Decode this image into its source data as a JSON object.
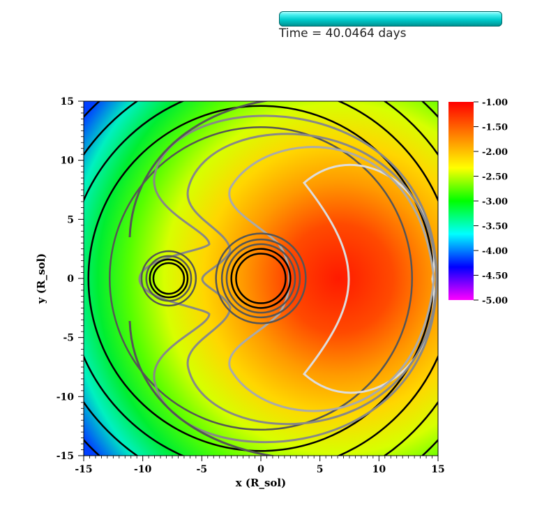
{
  "header": {
    "time_label": "Time = 40.0464 days",
    "progress": 1.0
  },
  "chart_data": {
    "type": "heatmap",
    "title": "",
    "xlabel": "x (R_sol)",
    "ylabel": "y (R_sol)",
    "xlim": [
      -15,
      15
    ],
    "ylim": [
      -15,
      15
    ],
    "x_ticks": [
      -15,
      -10,
      -5,
      0,
      5,
      10,
      15
    ],
    "y_ticks": [
      -15,
      -10,
      -5,
      0,
      5,
      10,
      15
    ],
    "x_tick_labels": [
      "-15",
      "-10",
      "-5",
      "0",
      "5",
      "10",
      "15"
    ],
    "y_tick_labels": [
      "-15",
      "-10",
      "-5",
      "0",
      "5",
      "10",
      "15"
    ],
    "colorbar": {
      "range": [
        -5.0,
        -1.0
      ],
      "tick_values": [
        -1.0,
        -1.5,
        -2.0,
        -2.5,
        -3.0,
        -3.5,
        -4.0,
        -4.5,
        -5.0
      ],
      "tick_labels": [
        "-1.00",
        "-1.50",
        "-2.00",
        "-2.50",
        "-3.00",
        "-3.50",
        "-4.00",
        "-4.50",
        "-5.00"
      ],
      "colors": [
        "#ff0000",
        "#ff8000",
        "#ffff00",
        "#00ff00",
        "#00ffff",
        "#0000ff",
        "#ff00ff"
      ]
    },
    "objects": [
      {
        "x": 0.0,
        "y": 0.0,
        "radius": 1.0
      },
      {
        "x": -7.8,
        "y": 0.0,
        "radius": 0.55
      }
    ],
    "contour_colors": [
      "#000000",
      "#555555",
      "#888888",
      "#aaaaaa",
      "#dddddd"
    ]
  }
}
